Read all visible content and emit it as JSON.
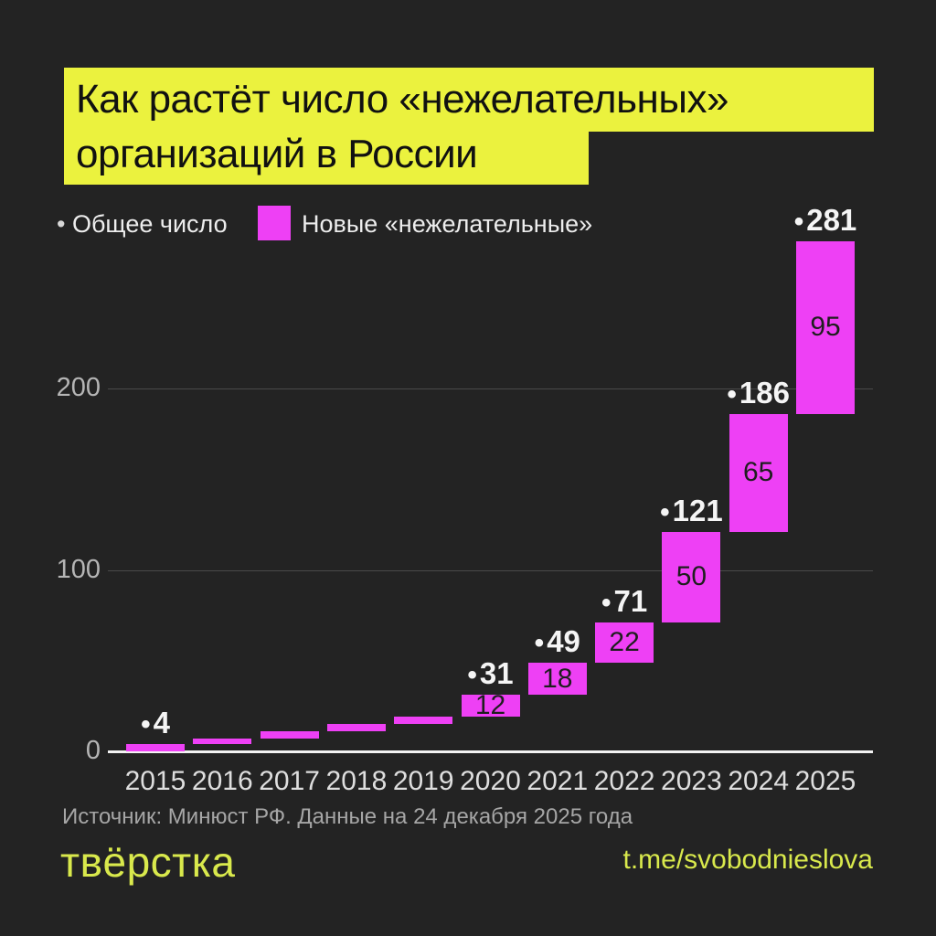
{
  "title": {
    "line1": "Как растёт число «нежелательных»",
    "line2": "организаций в России",
    "full": "Как растёт число «нежелательных» организаций в России"
  },
  "legend": {
    "total_label": "Общее число",
    "new_label": "Новые «нежелательные»"
  },
  "chart_data": {
    "type": "bar",
    "subtype": "waterfall",
    "title": "Как растёт число «нежелательных» организаций в России",
    "categories": [
      "2015",
      "2016",
      "2017",
      "2018",
      "2019",
      "2020",
      "2021",
      "2022",
      "2023",
      "2024",
      "2025"
    ],
    "series": [
      {
        "name": "Общее число",
        "values": [
          4,
          7,
          11,
          15,
          19,
          31,
          49,
          71,
          121,
          186,
          281
        ]
      },
      {
        "name": "Новые «нежелательные»",
        "values": [
          4,
          3,
          4,
          4,
          4,
          12,
          18,
          22,
          50,
          65,
          95
        ]
      }
    ],
    "total_labels": [
      4,
      null,
      null,
      null,
      null,
      31,
      49,
      71,
      121,
      186,
      281
    ],
    "bar_labels": [
      null,
      null,
      null,
      null,
      null,
      12,
      18,
      22,
      50,
      65,
      95
    ],
    "total_marker": "•",
    "xlabel": "",
    "ylabel": "",
    "yticks": [
      0,
      100,
      200
    ],
    "ylim": [
      0,
      300
    ],
    "grid": true,
    "legend_position": "top-left",
    "colors": {
      "bar": "#ee40f5",
      "total_label": "#f5f5f5",
      "bar_label": "#1e1e1e"
    }
  },
  "footer": {
    "source": "Источник: Минюст РФ. Данные на 24 декабря 2025 года",
    "logo": "твёрстка",
    "telegram": "t.me/svobodnieslova"
  },
  "colors": {
    "background": "#232323",
    "accent_yellow": "#ebf23e",
    "bar_magenta": "#ee40f5",
    "logo_yellow": "#d9e94c"
  }
}
